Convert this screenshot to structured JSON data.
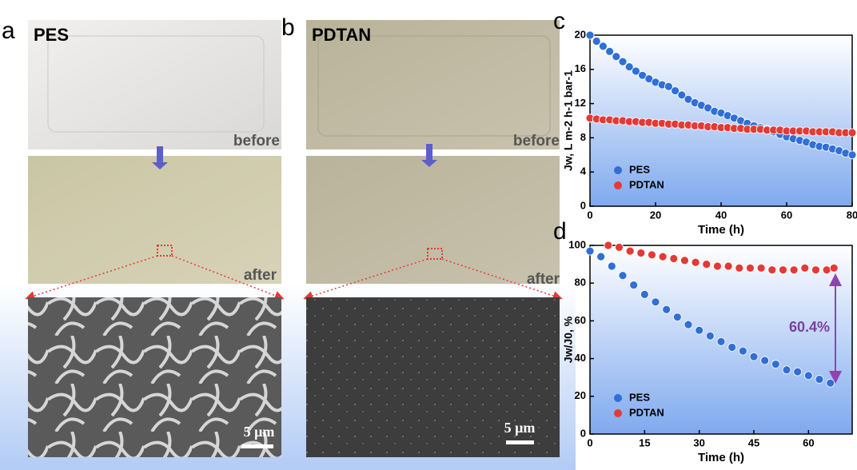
{
  "panels": [
    {
      "letter": "a",
      "title": "PES",
      "before": "before",
      "after": "after",
      "scale": "5 μm"
    },
    {
      "letter": "b",
      "title": "PDTAN",
      "before": "before",
      "after": "after",
      "scale": "5 μm"
    }
  ],
  "chart_data": [
    {
      "type": "scatter",
      "panel_label": "c",
      "xlabel": "Time (h)",
      "ylabel": "Jw, L m-2 h-1 bar-1",
      "xlim": [
        0,
        80
      ],
      "xticks": [
        0,
        20,
        40,
        60,
        80
      ],
      "ylim": [
        0,
        20
      ],
      "yticks": [
        0,
        4,
        8,
        12,
        16,
        20
      ],
      "series": [
        {
          "name": "PES",
          "color": "#2f6fd6",
          "x": [
            0,
            2,
            4,
            6,
            8,
            10,
            12,
            14,
            16,
            18,
            20,
            22,
            24,
            26,
            28,
            30,
            32,
            34,
            36,
            38,
            40,
            42,
            44,
            46,
            48,
            50,
            52,
            54,
            56,
            58,
            60,
            62,
            64,
            66,
            68,
            70,
            72,
            74,
            76,
            78,
            80
          ],
          "values": [
            20,
            19.3,
            18.7,
            18.1,
            17.5,
            16.9,
            16.3,
            15.8,
            15.3,
            14.9,
            14.5,
            14.2,
            14.0,
            13.5,
            13.0,
            12.5,
            12.1,
            11.8,
            11.5,
            11.1,
            10.9,
            10.6,
            10.3,
            10.0,
            9.7,
            9.4,
            9.2,
            9.0,
            8.7,
            8.4,
            8.1,
            7.9,
            7.7,
            7.5,
            7.2,
            7.0,
            6.9,
            6.7,
            6.5,
            6.2,
            6.0
          ]
        },
        {
          "name": "PDTAN",
          "color": "#e53935",
          "x": [
            0,
            2,
            4,
            6,
            8,
            10,
            12,
            14,
            16,
            18,
            20,
            22,
            24,
            26,
            28,
            30,
            32,
            34,
            36,
            38,
            40,
            42,
            44,
            46,
            48,
            50,
            52,
            54,
            56,
            58,
            60,
            62,
            64,
            66,
            68,
            70,
            72,
            74,
            76,
            78,
            80
          ],
          "values": [
            10.3,
            10.2,
            10.1,
            10.1,
            10.0,
            10.0,
            9.9,
            9.9,
            9.8,
            9.8,
            9.7,
            9.7,
            9.6,
            9.6,
            9.5,
            9.5,
            9.4,
            9.4,
            9.3,
            9.3,
            9.2,
            9.2,
            9.1,
            9.1,
            9.0,
            9.0,
            9.0,
            8.9,
            8.9,
            8.9,
            8.8,
            8.8,
            8.8,
            8.8,
            8.7,
            8.7,
            8.7,
            8.7,
            8.6,
            8.6,
            8.6
          ]
        }
      ]
    },
    {
      "type": "scatter",
      "panel_label": "d",
      "xlabel": "Time (h)",
      "ylabel": "Jw/J0, %",
      "xlim": [
        0,
        72
      ],
      "xticks": [
        0,
        15,
        30,
        45,
        60
      ],
      "ylim": [
        0,
        100
      ],
      "yticks": [
        0,
        20,
        40,
        60,
        80,
        100
      ],
      "annotation": "60.4%",
      "series": [
        {
          "name": "PES",
          "color": "#2f6fd6",
          "x": [
            0,
            3,
            6,
            9,
            12,
            15,
            18,
            21,
            24,
            27,
            30,
            33,
            36,
            39,
            42,
            45,
            48,
            51,
            54,
            57,
            60,
            63,
            66
          ],
          "values": [
            97,
            94,
            89,
            84,
            79,
            74,
            70,
            66,
            62,
            58,
            55,
            52,
            49,
            46,
            44,
            41,
            39,
            37,
            34,
            33,
            31,
            29,
            27
          ]
        },
        {
          "name": "PDTAN",
          "color": "#e53935",
          "x": [
            5,
            8,
            11,
            14,
            17,
            20,
            23,
            26,
            29,
            32,
            35,
            38,
            41,
            44,
            47,
            50,
            53,
            56,
            59,
            62,
            65,
            67
          ],
          "values": [
            100,
            99,
            97,
            96,
            95,
            94,
            93,
            92,
            91,
            90,
            89,
            89,
            88,
            88,
            88,
            87,
            87,
            87,
            88,
            87,
            87,
            88
          ]
        }
      ]
    }
  ]
}
